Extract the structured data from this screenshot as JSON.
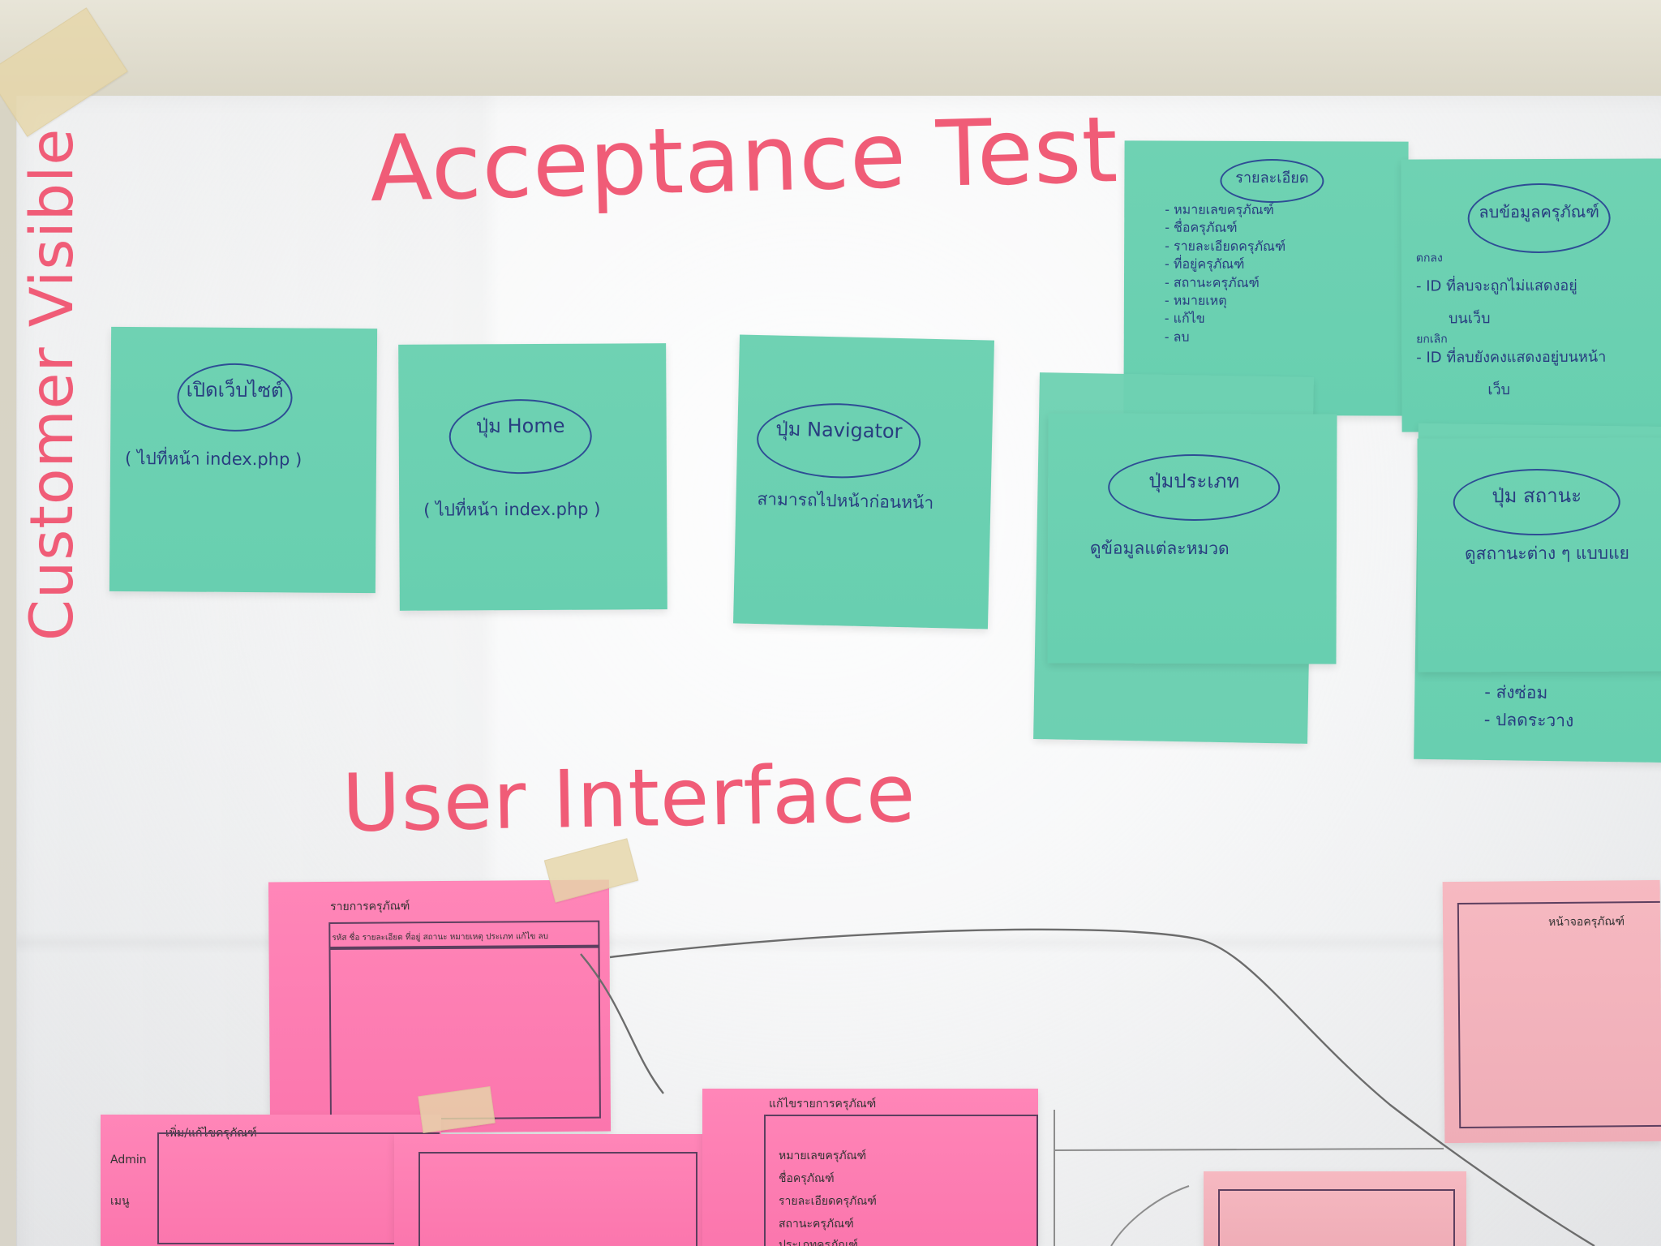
{
  "headings": {
    "acceptance_test": "Acceptance Test",
    "user_interface": "User Interface",
    "customer_visible": "Customer Visible"
  },
  "notes": {
    "open_site": {
      "title": "เปิดเว็บไซต์",
      "subtitle": "( ไปที่หน้า index.php )"
    },
    "home_button": {
      "title": "ปุ่ม Home",
      "subtitle": "( ไปที่หน้า index.php )"
    },
    "navigator_button": {
      "title": "ปุ่ม Navigator",
      "subtitle": "สามารถไปหน้าก่อนหน้า"
    },
    "details": {
      "title": "รายละเอียด",
      "items": "- หมายเลขครุภัณฑ์\n- ชื่อครุภัณฑ์\n- รายละเอียดครุภัณฑ์\n- ที่อยู่ครุภัณฑ์\n- สถานะครุภัณฑ์\n- หมายเหตุ\n- แก้ไข\n- ลบ"
    },
    "delete_equipment": {
      "title": "ลบข้อมูลครุภัณฑ์",
      "line1": "ตกลง",
      "line2": "- ID ที่ลบจะถูกไม่แสดงอยู่",
      "line3": "บนเว็บ",
      "line4": "ยกเลิก",
      "line5": "- ID ที่ลบยังคงแสดงอยู่บนหน้า",
      "line6": "เว็บ"
    },
    "category_button": {
      "title": "ปุ่มประเภท",
      "subtitle": "ดูข้อมูลแต่ละหมวด"
    },
    "status_button": {
      "title": "ปุ่ม สถานะ",
      "subtitle": "ดูสถานะต่าง ๆ แบบแย",
      "item1": "- ส่งซ่อม",
      "item2": "- ปลดระวาง"
    }
  },
  "ui_sketches": {
    "main_table_title": "รายการครุภัณฑ์",
    "main_table_headers": "รหัส  ชื่อ  รายละเอียด  ที่อยู่  สถานะ  หมายเหตุ  ประเภท  แก้ไข  ลบ",
    "left_title": "เพิ่ม/แก้ไขครุภัณฑ์",
    "left_label1": "Admin",
    "left_label2": "เมนู",
    "edit_form_title": "แก้ไขรายการครุภัณฑ์",
    "edit_form_line1": "หมายเลขครุภัณฑ์",
    "edit_form_line2": "ชื่อครุภัณฑ์",
    "edit_form_line3": "รายละเอียดครุภัณฑ์",
    "edit_form_line4": "สถานะครุภัณฑ์",
    "edit_form_line5": "ประเภทครุภัณฑ์",
    "right_sketch_title": "หน้าจอครุภัณฑ์"
  }
}
